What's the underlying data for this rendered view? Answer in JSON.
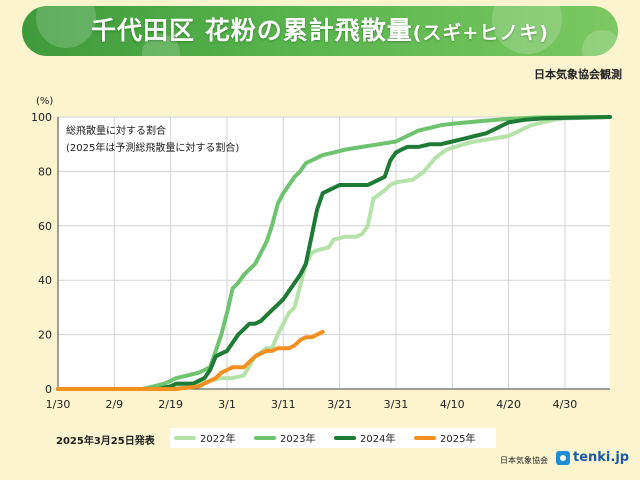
{
  "header": {
    "title_main": "千代田区  花粉の累計飛散量",
    "title_sub": "(スギ+ヒノキ)",
    "source": "日本気象協会観測"
  },
  "footer": {
    "issued": "2025年3月25日発表",
    "org": "日本気象協会",
    "logo_text": "tenki.jp"
  },
  "colors": {
    "banner": "#4ea844",
    "s2022": "#b5e2a8",
    "s2023": "#6dc36e",
    "s2024": "#1e7a35",
    "s2025": "#f39020",
    "grid": "#d3d3d3"
  },
  "chart_data": {
    "type": "line",
    "ylabel": "(%)",
    "ylim": [
      0,
      100
    ],
    "yticks": [
      0,
      20,
      40,
      60,
      80,
      100
    ],
    "xlim": [
      0,
      98
    ],
    "xticks": [
      {
        "x": 0,
        "label": "1/30"
      },
      {
        "x": 10,
        "label": "2/9"
      },
      {
        "x": 20,
        "label": "2/19"
      },
      {
        "x": 30,
        "label": "3/1"
      },
      {
        "x": 40,
        "label": "3/11"
      },
      {
        "x": 50,
        "label": "3/21"
      },
      {
        "x": 60,
        "label": "3/31"
      },
      {
        "x": 70,
        "label": "4/10"
      },
      {
        "x": 80,
        "label": "4/20"
      },
      {
        "x": 90,
        "label": "4/30"
      }
    ],
    "annotation": [
      "総飛散量に対する割合",
      "(2025年は予測総飛散量に対する割合)"
    ],
    "legend_position": "bottom",
    "series": [
      {
        "name": "2022年",
        "color": "#b5e2a8",
        "points": [
          [
            0,
            0
          ],
          [
            10,
            0
          ],
          [
            16,
            0
          ],
          [
            19,
            0.5
          ],
          [
            22,
            1
          ],
          [
            25,
            2
          ],
          [
            27,
            3
          ],
          [
            29,
            4
          ],
          [
            31,
            4
          ],
          [
            33,
            5
          ],
          [
            35,
            12
          ],
          [
            37,
            15
          ],
          [
            38,
            15
          ],
          [
            39,
            20
          ],
          [
            40,
            24
          ],
          [
            41,
            28
          ],
          [
            42,
            30
          ],
          [
            43,
            38
          ],
          [
            44,
            46
          ],
          [
            45,
            50
          ],
          [
            46,
            51
          ],
          [
            48,
            52
          ],
          [
            49,
            55
          ],
          [
            51,
            56
          ],
          [
            53,
            56
          ],
          [
            54,
            57
          ],
          [
            55,
            60
          ],
          [
            56,
            70
          ],
          [
            58,
            73
          ],
          [
            59,
            75
          ],
          [
            60,
            76
          ],
          [
            63,
            77
          ],
          [
            65,
            80
          ],
          [
            67,
            85
          ],
          [
            69,
            88
          ],
          [
            72,
            90
          ],
          [
            74,
            91
          ],
          [
            77,
            92
          ],
          [
            80,
            93
          ],
          [
            82,
            95
          ],
          [
            84,
            97
          ],
          [
            86,
            98
          ],
          [
            88,
            99
          ],
          [
            90,
            99.5
          ],
          [
            98,
            100
          ]
        ]
      },
      {
        "name": "2023年",
        "color": "#6dc36e",
        "points": [
          [
            0,
            0
          ],
          [
            15,
            0
          ],
          [
            17,
            1
          ],
          [
            19,
            2
          ],
          [
            21,
            4
          ],
          [
            23,
            5
          ],
          [
            25,
            6
          ],
          [
            26,
            7
          ],
          [
            27,
            8
          ],
          [
            28,
            14
          ],
          [
            29,
            20
          ],
          [
            30,
            28
          ],
          [
            31,
            37
          ],
          [
            32,
            39
          ],
          [
            33,
            42
          ],
          [
            34,
            44
          ],
          [
            35,
            46
          ],
          [
            36,
            50
          ],
          [
            37,
            54
          ],
          [
            38,
            60
          ],
          [
            39,
            68
          ],
          [
            40,
            72
          ],
          [
            41,
            75
          ],
          [
            42,
            78
          ],
          [
            43,
            80
          ],
          [
            44,
            83
          ],
          [
            45,
            84
          ],
          [
            46,
            85
          ],
          [
            47,
            86
          ],
          [
            49,
            87
          ],
          [
            51,
            88
          ],
          [
            54,
            89
          ],
          [
            57,
            90
          ],
          [
            60,
            91
          ],
          [
            62,
            93
          ],
          [
            64,
            95
          ],
          [
            66,
            96
          ],
          [
            68,
            97
          ],
          [
            70,
            97.5
          ],
          [
            75,
            98.5
          ],
          [
            80,
            99.3
          ],
          [
            85,
            99.8
          ],
          [
            98,
            100
          ]
        ]
      },
      {
        "name": "2024年",
        "color": "#1e7a35",
        "points": [
          [
            0,
            0
          ],
          [
            18,
            0
          ],
          [
            19,
            0.5
          ],
          [
            20,
            1
          ],
          [
            21,
            2
          ],
          [
            24,
            2
          ],
          [
            25,
            3
          ],
          [
            26,
            4
          ],
          [
            27,
            7
          ],
          [
            28,
            12
          ],
          [
            29,
            13
          ],
          [
            30,
            14
          ],
          [
            31,
            17
          ],
          [
            32,
            20
          ],
          [
            33,
            22
          ],
          [
            34,
            24
          ],
          [
            35,
            24
          ],
          [
            36,
            25
          ],
          [
            37,
            27
          ],
          [
            38,
            29
          ],
          [
            39,
            31
          ],
          [
            40,
            33
          ],
          [
            41,
            36
          ],
          [
            42,
            39
          ],
          [
            43,
            42
          ],
          [
            44,
            46
          ],
          [
            45,
            56
          ],
          [
            46,
            66
          ],
          [
            47,
            72
          ],
          [
            48,
            73
          ],
          [
            49,
            74
          ],
          [
            50,
            75
          ],
          [
            52,
            75
          ],
          [
            55,
            75
          ],
          [
            56,
            76
          ],
          [
            58,
            78
          ],
          [
            59,
            84
          ],
          [
            60,
            87
          ],
          [
            61,
            88
          ],
          [
            62,
            89
          ],
          [
            64,
            89
          ],
          [
            66,
            90
          ],
          [
            68,
            90
          ],
          [
            70,
            91
          ],
          [
            72,
            92
          ],
          [
            74,
            93
          ],
          [
            76,
            94
          ],
          [
            78,
            96
          ],
          [
            80,
            98
          ],
          [
            83,
            99
          ],
          [
            86,
            99.5
          ],
          [
            98,
            100
          ]
        ]
      },
      {
        "name": "2025年",
        "color": "#f39020",
        "points": [
          [
            0,
            0
          ],
          [
            21,
            0
          ],
          [
            25,
            1
          ],
          [
            28,
            4
          ],
          [
            29,
            6
          ],
          [
            30,
            7
          ],
          [
            31,
            8
          ],
          [
            32,
            8
          ],
          [
            33,
            8
          ],
          [
            34,
            10
          ],
          [
            35,
            12
          ],
          [
            36,
            13
          ],
          [
            37,
            14
          ],
          [
            38,
            14
          ],
          [
            39,
            15
          ],
          [
            40,
            15
          ],
          [
            41,
            15
          ],
          [
            42,
            16
          ],
          [
            43,
            18
          ],
          [
            44,
            19
          ],
          [
            45,
            19
          ],
          [
            46,
            20
          ],
          [
            47,
            21
          ]
        ]
      }
    ]
  }
}
